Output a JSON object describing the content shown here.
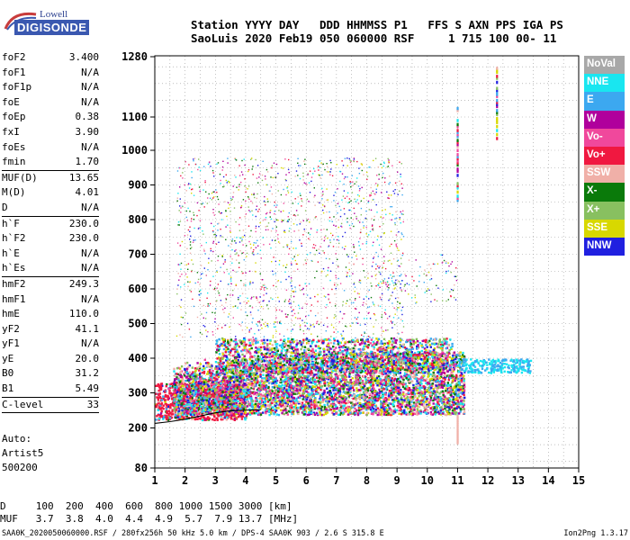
{
  "logo": {
    "lowell": "Lowell",
    "digisonde": "DIGISONDE"
  },
  "header": {
    "line1": "Station YYYY DAY   DDD HHMMSS P1   FFS S AXN PPS IGA PS",
    "line2": "SaoLuis 2020 Feb19 050 060000 RSF     1 715 100 00- 11"
  },
  "params": {
    "group1": [
      {
        "k": "foF2",
        "v": "3.400"
      },
      {
        "k": "foF1",
        "v": "N/A"
      },
      {
        "k": "foF1p",
        "v": "N/A"
      },
      {
        "k": "foE",
        "v": "N/A"
      },
      {
        "k": "foEp",
        "v": "0.38"
      },
      {
        "k": "fxI",
        "v": "3.90"
      },
      {
        "k": "foEs",
        "v": "N/A"
      },
      {
        "k": "fmin",
        "v": "1.70"
      }
    ],
    "group2": [
      {
        "k": "MUF(D)",
        "v": "13.65"
      },
      {
        "k": "M(D)",
        "v": "4.01"
      },
      {
        "k": "D",
        "v": "N/A"
      }
    ],
    "group3": [
      {
        "k": "h`F",
        "v": "230.0"
      },
      {
        "k": "h`F2",
        "v": "230.0"
      },
      {
        "k": "h`E",
        "v": "N/A"
      },
      {
        "k": "h`Es",
        "v": "N/A"
      }
    ],
    "group4": [
      {
        "k": "hmF2",
        "v": "249.3"
      },
      {
        "k": "hmF1",
        "v": "N/A"
      },
      {
        "k": "hmE",
        "v": "110.0"
      },
      {
        "k": "yF2",
        "v": "41.1"
      },
      {
        "k": "yF1",
        "v": "N/A"
      },
      {
        "k": "yE",
        "v": "20.0"
      },
      {
        "k": "B0",
        "v": "31.2"
      },
      {
        "k": "B1",
        "v": "5.49"
      }
    ],
    "group5": [
      {
        "k": "C-level",
        "v": "33"
      }
    ]
  },
  "auto": {
    "line1": "Auto:",
    "line2": "Artist5",
    "line3": "500200"
  },
  "legend": [
    {
      "label": "NoVal",
      "color": "#a8a8a8"
    },
    {
      "label": "NNE",
      "color": "#19e6f0"
    },
    {
      "label": "E",
      "color": "#3ca8f0"
    },
    {
      "label": "W",
      "color": "#b0009c"
    },
    {
      "label": "Vo-",
      "color": "#f0489c"
    },
    {
      "label": "Vo+",
      "color": "#f01840"
    },
    {
      "label": "SSW",
      "color": "#f0b0a8"
    },
    {
      "label": "X-",
      "color": "#0a7a0a"
    },
    {
      "label": "X+",
      "color": "#88c060"
    },
    {
      "label": "SSE",
      "color": "#d8d800"
    },
    {
      "label": "NNW",
      "color": "#2020e0"
    }
  ],
  "bottom": {
    "row1": "D     100  200  400  600  800 1000 1500 3000 [km]",
    "row2": "MUF   3.7  3.8  4.0  4.4  4.9  5.7  7.9 13.7 [MHz]"
  },
  "footer": {
    "left": "SAA0K_2020050060000.RSF / 280fx256h 50 kHz 5.0 km / DPS-4 SAA0K 903 / 2.6 S 315.8 E",
    "right": "Ion2Png 1.3.17"
  },
  "chart_data": {
    "type": "scatter",
    "title": "",
    "xlabel": "",
    "ylabel": "",
    "xlim": [
      1,
      15
    ],
    "ylim": [
      80,
      1280
    ],
    "x_ticks": [
      1,
      2,
      3,
      4,
      5,
      6,
      7,
      8,
      9,
      10,
      11,
      12,
      13,
      14,
      15
    ],
    "y_ticks": [
      80,
      200,
      300,
      400,
      500,
      600,
      700,
      800,
      900,
      1000,
      1100,
      1280
    ],
    "x_tick_labels": [
      "1",
      "2",
      "3",
      "4",
      "5",
      "6",
      "7",
      "8",
      "9",
      "10",
      "11",
      "12",
      "13",
      "14",
      "15"
    ],
    "y_tick_labels": [
      "80",
      "200",
      "300",
      "400",
      "500",
      "600",
      "700",
      "800",
      "900",
      "1000",
      "1100",
      "1280"
    ],
    "grid": true,
    "trace_curve": {
      "x": [
        1.0,
        1.5,
        2.0,
        2.5,
        3.0,
        3.4,
        3.8,
        4.5
      ],
      "y": [
        213,
        218,
        225,
        234,
        243,
        248,
        250,
        252
      ]
    },
    "clusters": [
      {
        "xr": [
          1.0,
          4.0
        ],
        "yr": [
          225,
          330
        ],
        "n": 900,
        "series": "Vo+"
      },
      {
        "xr": [
          1.6,
          11.2
        ],
        "yr": [
          240,
          420
        ],
        "n": 5200,
        "series": "mixed"
      },
      {
        "xr": [
          3.0,
          10.8
        ],
        "yr": [
          360,
          460
        ],
        "n": 1400,
        "series": "mixed"
      },
      {
        "xr": [
          11.0,
          13.4
        ],
        "yr": [
          360,
          400
        ],
        "n": 260,
        "series": "NNE"
      },
      {
        "xr": [
          1.7,
          9.2
        ],
        "yr": [
          460,
          980
        ],
        "n": 1500,
        "series": "sparse"
      },
      {
        "xr": [
          8.2,
          11.0
        ],
        "yr": [
          560,
          700
        ],
        "n": 120,
        "series": "sparse"
      }
    ],
    "vertical_traces": [
      {
        "x": 11.0,
        "yr": [
          160,
          240
        ],
        "series": "SSW"
      },
      {
        "x": 11.0,
        "yr": [
          860,
          1130
        ],
        "series": "mixed"
      },
      {
        "x": 12.3,
        "yr": [
          1040,
          1250
        ],
        "series": "mixed"
      }
    ]
  }
}
